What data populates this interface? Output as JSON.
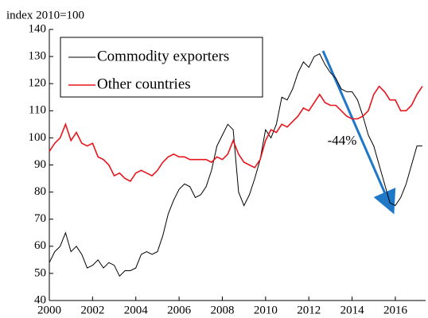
{
  "chart_data": {
    "type": "line",
    "subtitle": "index 2010=100",
    "x": [
      2000,
      2000.25,
      2000.5,
      2000.75,
      2001,
      2001.25,
      2001.5,
      2001.75,
      2002,
      2002.25,
      2002.5,
      2002.75,
      2003,
      2003.25,
      2003.5,
      2003.75,
      2004,
      2004.25,
      2004.5,
      2004.75,
      2005,
      2005.25,
      2005.5,
      2005.75,
      2006,
      2006.25,
      2006.5,
      2006.75,
      2007,
      2007.25,
      2007.5,
      2007.75,
      2008,
      2008.25,
      2008.5,
      2008.75,
      2009,
      2009.25,
      2009.5,
      2009.75,
      2010,
      2010.25,
      2010.5,
      2010.75,
      2011,
      2011.25,
      2011.5,
      2011.75,
      2012,
      2012.25,
      2012.5,
      2012.75,
      2013,
      2013.25,
      2013.5,
      2013.75,
      2014,
      2014.25,
      2014.5,
      2014.75,
      2015,
      2015.25,
      2015.5,
      2015.75,
      2016,
      2016.25,
      2016.5,
      2016.75,
      2017,
      2017.25
    ],
    "series": [
      {
        "name": "Commodity exporters",
        "color": "#000000",
        "values": [
          54,
          58,
          60,
          65,
          58,
          60,
          57,
          52,
          53,
          55,
          52,
          54,
          53,
          49,
          51,
          51,
          52,
          57,
          58,
          57,
          58,
          64,
          72,
          77,
          81,
          83,
          82,
          78,
          79,
          82,
          88,
          97,
          101,
          105,
          103,
          80,
          75,
          79,
          85,
          92,
          103,
          100,
          105,
          115,
          114,
          118,
          124,
          128,
          126,
          130,
          131,
          127,
          124,
          122,
          118,
          117,
          117,
          114,
          108,
          101,
          97,
          90,
          83,
          76,
          75,
          78,
          83,
          90,
          97,
          97
        ]
      },
      {
        "name": "Other countries",
        "color": "#e8141c",
        "values": [
          95,
          98,
          100,
          105,
          99,
          102,
          98,
          97,
          98,
          93,
          92,
          90,
          86,
          87,
          85,
          84,
          87,
          88,
          87,
          86,
          88,
          91,
          93,
          94,
          93,
          93,
          92,
          92,
          92,
          92,
          91,
          93,
          92,
          94,
          99,
          94,
          91,
          90,
          89,
          92,
          99,
          103,
          102,
          105,
          104,
          106,
          108,
          111,
          110,
          113,
          116,
          113,
          112,
          112,
          110,
          108,
          107,
          107,
          108,
          110,
          116,
          119,
          117,
          114,
          114,
          110,
          110,
          112,
          116,
          119
        ]
      }
    ],
    "annotations": [
      "-44%"
    ],
    "xlim": [
      2000,
      2017.4
    ],
    "xticks": [
      2000,
      2002,
      2004,
      2006,
      2008,
      2010,
      2012,
      2014,
      2016
    ],
    "ylim": [
      40,
      140
    ],
    "yticks": [
      40,
      50,
      60,
      70,
      80,
      90,
      100,
      110,
      120,
      130,
      140
    ],
    "grid": false,
    "legend": "upper left"
  }
}
